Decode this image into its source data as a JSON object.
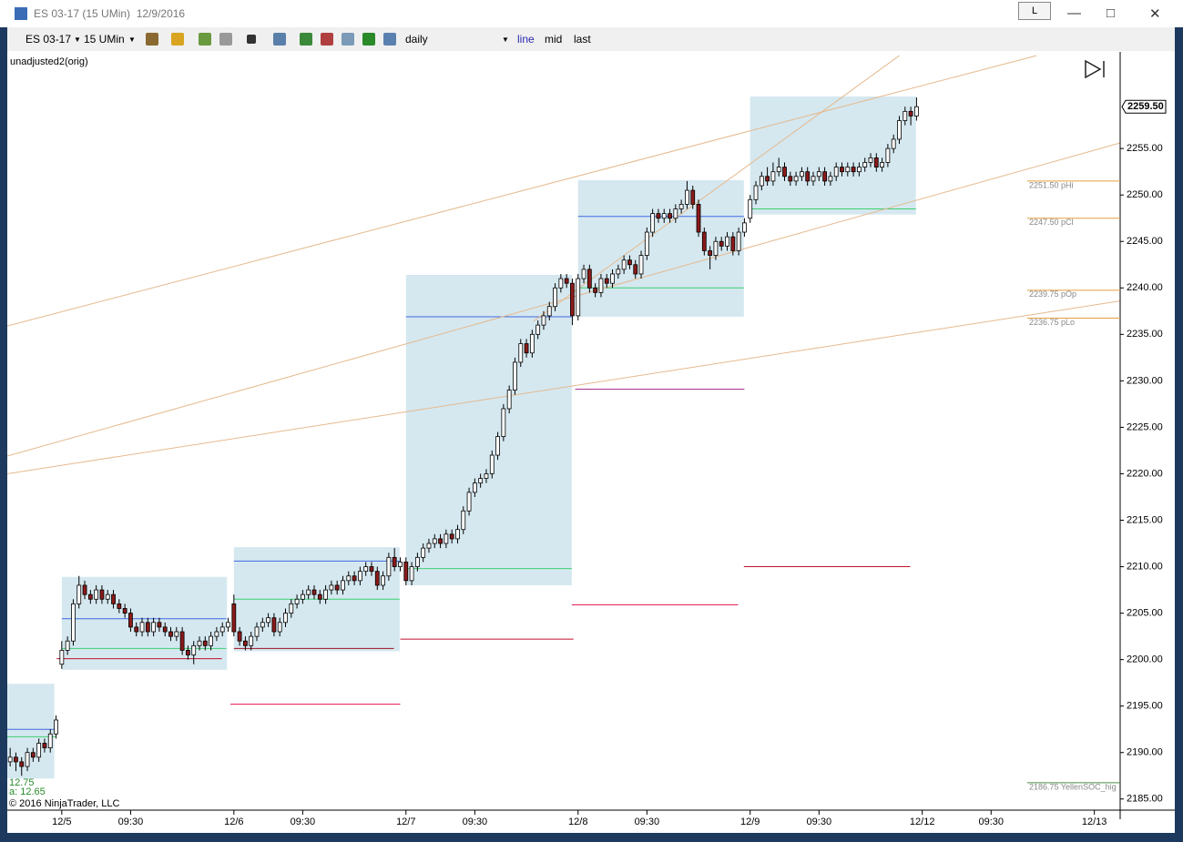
{
  "window": {
    "title": "ES 03-17 (15 UMin)  12/9/2016",
    "button": "L"
  },
  "toolbar": {
    "instrument": "ES 03-17",
    "interval": "15 UMin",
    "template": "daily",
    "modes": [
      "line",
      "mid",
      "last"
    ]
  },
  "chart_data": {
    "type": "candlestick",
    "indicator_label": "unadjusted2(orig)",
    "copyright": "© 2016 NinjaTrader, LLC",
    "info": [
      "12.75",
      "a: 12.65"
    ],
    "up_color": "#ffffff",
    "down_color": "#8b1a1a",
    "wick_color": "#000000",
    "box_color": "#d5e8f0",
    "trend_color": "#e5b98e",
    "candles": [
      [
        2189,
        2190.5,
        2188.5,
        2189.5
      ],
      [
        2189.5,
        2190,
        2188,
        2189
      ],
      [
        2189,
        2189.5,
        2187.5,
        2188.5
      ],
      [
        2188.5,
        2190.5,
        2188,
        2190
      ],
      [
        2190,
        2190.5,
        2189,
        2189.5
      ],
      [
        2189.5,
        2191.5,
        2189,
        2191
      ],
      [
        2191,
        2191.5,
        2190,
        2190.5
      ],
      [
        2190.5,
        2192.5,
        2190,
        2192
      ],
      [
        2192,
        2194,
        2191.5,
        2193.5
      ],
      [
        2199.5,
        2202,
        2199,
        2201
      ],
      [
        2201,
        2202.5,
        2200.5,
        2202
      ],
      [
        2202,
        2206.5,
        2201.5,
        2206
      ],
      [
        2206,
        2209,
        2205.5,
        2208
      ],
      [
        2208,
        2208.5,
        2206.5,
        2207
      ],
      [
        2207,
        2207.5,
        2206,
        2206.5
      ],
      [
        2206.5,
        2208,
        2206,
        2207.5
      ],
      [
        2207.5,
        2208,
        2206,
        2206.5
      ],
      [
        2206.5,
        2207.5,
        2206,
        2207
      ],
      [
        2207,
        2207.5,
        2205.5,
        2206
      ],
      [
        2206,
        2206.5,
        2205,
        2205.5
      ],
      [
        2205.5,
        2206,
        2204.5,
        2205
      ],
      [
        2205,
        2205.5,
        2203,
        2203.5
      ],
      [
        2203.5,
        2204,
        2202.5,
        2203
      ],
      [
        2203,
        2204.5,
        2202.5,
        2204
      ],
      [
        2204,
        2204.5,
        2202.5,
        2203
      ],
      [
        2203,
        2204.5,
        2202.5,
        2204
      ],
      [
        2204,
        2204.5,
        2203,
        2203.5
      ],
      [
        2203.5,
        2204,
        2202.5,
        2203
      ],
      [
        2203,
        2203.5,
        2202,
        2202.5
      ],
      [
        2202.5,
        2203.5,
        2202,
        2203
      ],
      [
        2203,
        2203.5,
        2200.5,
        2201
      ],
      [
        2201,
        2201.5,
        2200,
        2200.5
      ],
      [
        2200.5,
        2202,
        2199.5,
        2201.5
      ],
      [
        2201.5,
        2202.5,
        2201,
        2202
      ],
      [
        2202,
        2202.5,
        2201,
        2201.5
      ],
      [
        2201.5,
        2203,
        2201,
        2202.5
      ],
      [
        2202.5,
        2203.5,
        2202,
        2203
      ],
      [
        2203,
        2204,
        2202.5,
        2203.5
      ],
      [
        2203.5,
        2204.5,
        2203,
        2204
      ],
      [
        2206,
        2207,
        2202.5,
        2203
      ],
      [
        2203,
        2203.5,
        2201.5,
        2202
      ],
      [
        2202,
        2202.5,
        2201,
        2201.5
      ],
      [
        2201.5,
        2203,
        2201,
        2202.5
      ],
      [
        2202.5,
        2204,
        2202,
        2203.5
      ],
      [
        2203.5,
        2204.5,
        2203,
        2204
      ],
      [
        2204,
        2205,
        2203.5,
        2204.5
      ],
      [
        2204.5,
        2205,
        2202.5,
        2203
      ],
      [
        2203,
        2204.5,
        2202.5,
        2204
      ],
      [
        2204,
        2205.5,
        2203.5,
        2205
      ],
      [
        2205,
        2206.5,
        2204.5,
        2206
      ],
      [
        2206,
        2207,
        2205.5,
        2206.5
      ],
      [
        2206.5,
        2207.5,
        2206,
        2207
      ],
      [
        2207,
        2208,
        2206.5,
        2207.5
      ],
      [
        2207.5,
        2208,
        2206.5,
        2207
      ],
      [
        2207,
        2207.5,
        2206,
        2206.5
      ],
      [
        2206.5,
        2208,
        2206,
        2207.5
      ],
      [
        2207.5,
        2208.5,
        2207,
        2208
      ],
      [
        2208,
        2208.5,
        2207,
        2207.5
      ],
      [
        2207.5,
        2209,
        2207,
        2208.5
      ],
      [
        2208.5,
        2209.5,
        2208,
        2209
      ],
      [
        2209,
        2209.5,
        2208,
        2208.5
      ],
      [
        2208.5,
        2210,
        2208,
        2209.5
      ],
      [
        2209.5,
        2210.5,
        2209,
        2210
      ],
      [
        2210,
        2210.5,
        2209,
        2209.5
      ],
      [
        2209.5,
        2210,
        2207.5,
        2208
      ],
      [
        2208,
        2209.5,
        2207.5,
        2209
      ],
      [
        2209,
        2211.5,
        2208.5,
        2211
      ],
      [
        2211,
        2212,
        2209.5,
        2210
      ],
      [
        2210,
        2211,
        2209.5,
        2210.5
      ],
      [
        2210.5,
        2211,
        2208,
        2208.5
      ],
      [
        2208.5,
        2210.5,
        2208,
        2210
      ],
      [
        2210,
        2211.5,
        2209.5,
        2211
      ],
      [
        2211,
        2212.5,
        2210.5,
        2212
      ],
      [
        2212,
        2213,
        2211.5,
        2212.5
      ],
      [
        2212.5,
        2213.5,
        2212,
        2213
      ],
      [
        2213,
        2213.5,
        2212,
        2212.5
      ],
      [
        2212.5,
        2214,
        2212,
        2213.5
      ],
      [
        2213.5,
        2214,
        2212.5,
        2213
      ],
      [
        2213,
        2214.5,
        2212.5,
        2214
      ],
      [
        2214,
        2216.5,
        2213.5,
        2216
      ],
      [
        2216,
        2218.5,
        2215.5,
        2218
      ],
      [
        2218,
        2219.5,
        2217.5,
        2219
      ],
      [
        2219,
        2220,
        2218.5,
        2219.5
      ],
      [
        2219.5,
        2220.5,
        2219,
        2220
      ],
      [
        2220,
        2222.5,
        2219.5,
        2222
      ],
      [
        2222,
        2224.5,
        2221.5,
        2224
      ],
      [
        2224,
        2227.5,
        2223.5,
        2227
      ],
      [
        2227,
        2229.5,
        2226.5,
        2229
      ],
      [
        2229,
        2232.5,
        2228.5,
        2232
      ],
      [
        2232,
        2234.5,
        2231.5,
        2234
      ],
      [
        2234,
        2234.5,
        2232.5,
        2233
      ],
      [
        2233,
        2235.5,
        2232.5,
        2235
      ],
      [
        2235,
        2236.5,
        2234.5,
        2236
      ],
      [
        2236,
        2237.5,
        2235.5,
        2237
      ],
      [
        2237,
        2238.5,
        2236.5,
        2238
      ],
      [
        2238,
        2240.5,
        2237.5,
        2240
      ],
      [
        2240,
        2241.5,
        2239.5,
        2241
      ],
      [
        2241,
        2241.5,
        2240,
        2240.5
      ],
      [
        2240.5,
        2241,
        2236,
        2237
      ],
      [
        2237,
        2241.5,
        2236.5,
        2241
      ],
      [
        2241,
        2242.5,
        2240.5,
        2242
      ],
      [
        2242,
        2242.5,
        2239.5,
        2240
      ],
      [
        2240,
        2240.5,
        2239,
        2239.5
      ],
      [
        2239.5,
        2241.5,
        2239,
        2241
      ],
      [
        2241,
        2241.5,
        2240,
        2240.5
      ],
      [
        2240.5,
        2242,
        2240,
        2241.5
      ],
      [
        2241.5,
        2242.5,
        2241,
        2242
      ],
      [
        2242,
        2243.5,
        2241.5,
        2243
      ],
      [
        2243,
        2243.5,
        2242,
        2242.5
      ],
      [
        2242.5,
        2243,
        2241,
        2241.5
      ],
      [
        2241.5,
        2244,
        2241,
        2243.5
      ],
      [
        2243.5,
        2246.5,
        2243,
        2246
      ],
      [
        2246,
        2248.5,
        2245.5,
        2248
      ],
      [
        2248,
        2248.5,
        2247,
        2247.5
      ],
      [
        2247.5,
        2248.5,
        2247,
        2248
      ],
      [
        2248,
        2248.5,
        2247,
        2247.5
      ],
      [
        2247.5,
        2249,
        2247,
        2248.5
      ],
      [
        2248.5,
        2249.5,
        2248,
        2249
      ],
      [
        2249,
        2251.5,
        2248.5,
        2250.5
      ],
      [
        2250.5,
        2251,
        2248.5,
        2249
      ],
      [
        2249,
        2249.5,
        2245.5,
        2246
      ],
      [
        2246,
        2246.5,
        2243.5,
        2244
      ],
      [
        2244,
        2244.5,
        2242,
        2243.5
      ],
      [
        2243.5,
        2245.5,
        2243,
        2245
      ],
      [
        2245,
        2245.5,
        2244,
        2244.5
      ],
      [
        2244.5,
        2246,
        2244,
        2245.5
      ],
      [
        2245.5,
        2246,
        2243.5,
        2244
      ],
      [
        2244,
        2246.5,
        2243.5,
        2246
      ],
      [
        2246,
        2247.5,
        2245.5,
        2247
      ],
      [
        2247.5,
        2250,
        2247,
        2249.5
      ],
      [
        2249.5,
        2251.5,
        2249,
        2251
      ],
      [
        2251,
        2252.5,
        2250.5,
        2252
      ],
      [
        2252,
        2253,
        2251,
        2251.5
      ],
      [
        2251.5,
        2253.5,
        2251,
        2252.5
      ],
      [
        2252.5,
        2254,
        2252,
        2253
      ],
      [
        2253,
        2253.5,
        2251.5,
        2252
      ],
      [
        2252,
        2252.5,
        2251,
        2251.5
      ],
      [
        2251.5,
        2252.5,
        2251,
        2252
      ],
      [
        2252,
        2253,
        2251.5,
        2252.5
      ],
      [
        2252.5,
        2253,
        2251,
        2251.5
      ],
      [
        2251.5,
        2252.5,
        2251,
        2252
      ],
      [
        2252,
        2253,
        2251.5,
        2252.5
      ],
      [
        2252.5,
        2253,
        2251,
        2251.5
      ],
      [
        2251.5,
        2252.5,
        2251,
        2252
      ],
      [
        2252,
        2253.5,
        2251.5,
        2253
      ],
      [
        2253,
        2253.5,
        2252,
        2252.5
      ],
      [
        2252.5,
        2253.5,
        2252,
        2253
      ],
      [
        2253,
        2253.5,
        2252,
        2252.5
      ],
      [
        2252.5,
        2253.5,
        2252,
        2253
      ],
      [
        2253,
        2254,
        2252.5,
        2253.5
      ],
      [
        2253.5,
        2254.5,
        2253,
        2254
      ],
      [
        2254,
        2254.5,
        2252.5,
        2253
      ],
      [
        2253,
        2254,
        2252.5,
        2253.5
      ],
      [
        2253.5,
        2255.5,
        2253,
        2255
      ],
      [
        2255,
        2256.5,
        2254.5,
        2256
      ],
      [
        2256,
        2258.5,
        2255.5,
        2258
      ],
      [
        2258,
        2259.5,
        2257.5,
        2259
      ],
      [
        2259,
        2259.5,
        2257.5,
        2258.5
      ],
      [
        2258.5,
        2260.5,
        2258,
        2259.5
      ]
    ],
    "xlim": [
      -0.5,
      193.5
    ],
    "xticks": [
      {
        "value": 9,
        "label": "12/5"
      },
      {
        "value": 21,
        "label": "09:30"
      },
      {
        "value": 39,
        "label": "12/6"
      },
      {
        "value": 51,
        "label": "09:30"
      },
      {
        "value": 69,
        "label": "12/7"
      },
      {
        "value": 81,
        "label": "09:30"
      },
      {
        "value": 99,
        "label": "12/8"
      },
      {
        "value": 111,
        "label": "09:30"
      },
      {
        "value": 129,
        "label": "12/9"
      },
      {
        "value": 141,
        "label": "09:30"
      },
      {
        "value": 159,
        "label": "12/12"
      },
      {
        "value": 171,
        "label": "09:30"
      },
      {
        "value": 189,
        "label": "12/13"
      }
    ],
    "ylim": [
      2183.8,
      2265.4
    ],
    "yticks": [
      {
        "value": 2185,
        "label": "2185.00"
      },
      {
        "value": 2190,
        "label": "2190.00"
      },
      {
        "value": 2195,
        "label": "2195.00"
      },
      {
        "value": 2200,
        "label": "2200.00"
      },
      {
        "value": 2205,
        "label": "2205.00"
      },
      {
        "value": 2210,
        "label": "2210.00"
      },
      {
        "value": 2215,
        "label": "2215.00"
      },
      {
        "value": 2220,
        "label": "2220.00"
      },
      {
        "value": 2225,
        "label": "2225.00"
      },
      {
        "value": 2230,
        "label": "2230.00"
      },
      {
        "value": 2235,
        "label": "2235.00"
      },
      {
        "value": 2240,
        "label": "2240.00"
      },
      {
        "value": 2245,
        "label": "2245.00"
      },
      {
        "value": 2250,
        "label": "2250.00"
      },
      {
        "value": 2255,
        "label": "2255.00"
      }
    ],
    "last_price": {
      "value": 2259.5,
      "label": "2259.50"
    },
    "profile_boxes": [
      {
        "x": [
          -0.5,
          7.7
        ],
        "y": [
          2187.2,
          2197.4
        ]
      },
      {
        "x": [
          9,
          37.8
        ],
        "y": [
          2198.9,
          2208.9
        ]
      },
      {
        "x": [
          39,
          67.9
        ],
        "y": [
          2200.9,
          2212.1
        ]
      },
      {
        "x": [
          69,
          97.9
        ],
        "y": [
          2208.0,
          2241.4
        ]
      },
      {
        "x": [
          99,
          127.9
        ],
        "y": [
          2236.9,
          2251.6
        ]
      },
      {
        "x": [
          129,
          157.9
        ],
        "y": [
          2247.9,
          2260.6
        ]
      }
    ],
    "levels": [
      {
        "x": [
          -0.5,
          7.9
        ],
        "y": 2192.5,
        "color": "#4169e1"
      },
      {
        "x": [
          -0.5,
          7.9
        ],
        "y": 2191.7,
        "color": "#3cd070"
      },
      {
        "x": [
          9,
          37.7
        ],
        "y": 2204.4,
        "color": "#4169e1"
      },
      {
        "x": [
          9,
          37.7
        ],
        "y": 2201.2,
        "color": "#3cd070"
      },
      {
        "x": [
          8.1,
          36.9
        ],
        "y": 2200.1,
        "color": "#c0102a"
      },
      {
        "x": [
          39,
          67.9
        ],
        "y": 2210.6,
        "color": "#4169e1"
      },
      {
        "x": [
          39,
          67.9
        ],
        "y": 2206.5,
        "color": "#3cd070"
      },
      {
        "x": [
          39,
          66.9
        ],
        "y": 2201.2,
        "color": "#a01020"
      },
      {
        "x": [
          38.4,
          68
        ],
        "y": 2195.2,
        "color": "#e0104a"
      },
      {
        "x": [
          68,
          98.2
        ],
        "y": 2202.2,
        "color": "#c0102a"
      },
      {
        "x": [
          69,
          97.9
        ],
        "y": 2236.9,
        "color": "#4169e1"
      },
      {
        "x": [
          69,
          97.9
        ],
        "y": 2209.8,
        "color": "#3cd070"
      },
      {
        "x": [
          97.9,
          126.9
        ],
        "y": 2205.9,
        "color": "#e0104a"
      },
      {
        "x": [
          99,
          127.9
        ],
        "y": 2247.7,
        "color": "#4169e1"
      },
      {
        "x": [
          99,
          127.9
        ],
        "y": 2240.0,
        "color": "#3cd070"
      },
      {
        "x": [
          98.5,
          128
        ],
        "y": 2229.1,
        "color": "#a0208a"
      },
      {
        "x": [
          129,
          157.9
        ],
        "y": 2248.5,
        "color": "#3cd070"
      },
      {
        "x": [
          127.9,
          156.9
        ],
        "y": 2210.0,
        "color": "#c0102a"
      }
    ],
    "trend_lines": [
      {
        "x": [
          -0.5,
          178.9
        ],
        "y": [
          2235.9,
          2265.0
        ]
      },
      {
        "x": [
          -0.5,
          193.5
        ],
        "y": [
          2221.9,
          2255.6
        ]
      },
      {
        "x": [
          -0.5,
          193.5
        ],
        "y": [
          2220.0,
          2238.6
        ]
      },
      {
        "x": [
          91.2,
          155
        ],
        "y": [
          2236.4,
          2265.0
        ]
      }
    ],
    "reference_levels": [
      {
        "value": 2251.5,
        "label": "2251.50 pHi",
        "color": "#e0a040"
      },
      {
        "value": 2247.5,
        "label": "2247.50 pCl",
        "color": "#e0a040"
      },
      {
        "value": 2239.75,
        "label": "2239.75 pOp",
        "color": "#e0a040"
      },
      {
        "value": 2236.75,
        "label": "2236.75 pLo",
        "color": "#e0a040"
      },
      {
        "value": 2186.75,
        "label": "2186.75 YellenSOC_hig",
        "color": "#4a8a4a"
      }
    ]
  }
}
